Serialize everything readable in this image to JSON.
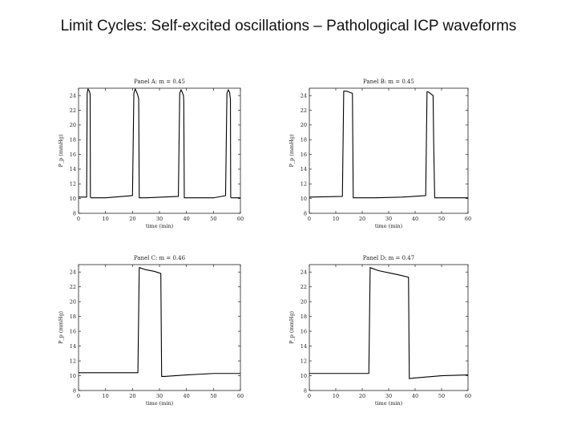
{
  "slide": {
    "title": "Limit Cycles: Self-excited oscillations – Pathological ICP waveforms"
  },
  "colors": {
    "line": "#000000",
    "axis": "#222222",
    "background": "#ffffff"
  },
  "chart_data": [
    {
      "type": "line",
      "title": "Panel A: m = 0.45",
      "xlabel": "time (min)",
      "ylabel": "P_p (mmHg)",
      "xlim": [
        0,
        60
      ],
      "ylim": [
        8,
        25
      ],
      "xticks": [
        0,
        10,
        20,
        30,
        40,
        50,
        60
      ],
      "yticks": [
        8,
        10,
        12,
        14,
        16,
        18,
        20,
        22,
        24
      ],
      "grid": false,
      "series": [
        {
          "x": [
            0,
            3,
            3.2,
            3.5,
            4.0,
            4.3,
            4.4,
            4.6,
            5,
            10,
            20,
            20.5,
            21,
            21.5,
            22,
            22.3,
            22.5,
            25,
            37,
            37.5,
            38,
            38.5,
            38.9,
            39,
            39.2,
            42,
            50,
            54.5,
            55,
            55.5,
            56,
            56.3,
            56.4,
            56.6,
            60
          ],
          "y": [
            10.2,
            10.2,
            24.3,
            24.9,
            24.6,
            24.2,
            10.2,
            10.1,
            10.1,
            10.1,
            10.4,
            24.3,
            24.9,
            24.5,
            24.0,
            23.5,
            10.1,
            10.1,
            10.3,
            24.3,
            24.8,
            24.4,
            24.0,
            23.3,
            10.1,
            10.1,
            10.1,
            10.4,
            24.3,
            24.8,
            24.4,
            23.5,
            10.2,
            10.1,
            10.1
          ]
        }
      ]
    },
    {
      "type": "line",
      "title": "Panel B: m = 0.45",
      "xlabel": "time (min)",
      "ylabel": "P_p (mmHg)",
      "xlim": [
        0,
        60
      ],
      "ylim": [
        8,
        25
      ],
      "xticks": [
        0,
        10,
        20,
        30,
        40,
        50,
        60
      ],
      "yticks": [
        8,
        10,
        12,
        14,
        16,
        18,
        20,
        22,
        24
      ],
      "grid": false,
      "series": [
        {
          "x": [
            0,
            12.5,
            13,
            14,
            16.3,
            16.6,
            17,
            25,
            35,
            44,
            44.5,
            45,
            46.8,
            47,
            47.4,
            50,
            60
          ],
          "y": [
            10.2,
            10.3,
            24.6,
            24.6,
            24.3,
            10.1,
            10.1,
            10.1,
            10.2,
            10.4,
            24.5,
            24.5,
            24.0,
            18.0,
            10.1,
            10.1,
            10.1
          ]
        }
      ]
    },
    {
      "type": "line",
      "title": "Panel C: m = 0.46",
      "xlabel": "time (min)",
      "ylabel": "P_p (mmHg)",
      "xlim": [
        0,
        60
      ],
      "ylim": [
        8,
        25
      ],
      "xticks": [
        0,
        10,
        20,
        30,
        40,
        50,
        60
      ],
      "yticks": [
        8,
        10,
        12,
        14,
        16,
        18,
        20,
        22,
        24
      ],
      "grid": false,
      "series": [
        {
          "x": [
            0,
            10,
            22,
            22.5,
            25,
            28,
            30.5,
            30.8,
            32,
            40,
            50,
            60
          ],
          "y": [
            10.4,
            10.4,
            10.4,
            24.6,
            24.3,
            24.1,
            23.8,
            9.9,
            9.9,
            10.1,
            10.3,
            10.3
          ]
        }
      ]
    },
    {
      "type": "line",
      "title": "Panel D: m = 0.47",
      "xlabel": "time (min)",
      "ylabel": "P_p (mmHg)",
      "xlim": [
        0,
        60
      ],
      "ylim": [
        8,
        25
      ],
      "xticks": [
        0,
        10,
        20,
        30,
        40,
        50,
        60
      ],
      "yticks": [
        8,
        10,
        12,
        14,
        16,
        18,
        20,
        22,
        24
      ],
      "grid": false,
      "series": [
        {
          "x": [
            0,
            10,
            22.5,
            23,
            26,
            30,
            34,
            37.5,
            37.8,
            40,
            50,
            60
          ],
          "y": [
            10.3,
            10.3,
            10.3,
            24.6,
            24.2,
            23.9,
            23.6,
            23.3,
            9.6,
            9.7,
            10.0,
            10.1
          ]
        }
      ]
    }
  ]
}
